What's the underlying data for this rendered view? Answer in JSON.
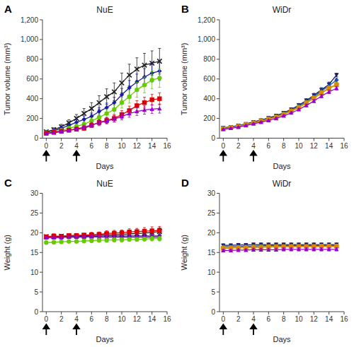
{
  "chart_data": [
    {
      "type": "line",
      "label": "A",
      "title": "NuE",
      "xlabel": "Days",
      "ylabel": "Tumor volume (mm³)",
      "xlim": [
        -0.5,
        16
      ],
      "xticks": [
        0,
        2,
        4,
        6,
        8,
        10,
        12,
        14,
        16
      ],
      "ylim": [
        0,
        1200
      ],
      "yticks": [
        0,
        200,
        400,
        600,
        800,
        {
          "value": 1000,
          "label": "1,000"
        },
        {
          "value": 1200,
          "label": "1,200"
        }
      ],
      "x": [
        0,
        1,
        2,
        3,
        4,
        5,
        6,
        7,
        8,
        9,
        10,
        11,
        12,
        13,
        14,
        15
      ],
      "arrows": [
        0,
        4
      ],
      "series": [
        {
          "color": "#222222",
          "marker": "x",
          "values": [
            65,
            85,
            115,
            155,
            200,
            250,
            300,
            360,
            420,
            470,
            560,
            640,
            700,
            740,
            760,
            780
          ],
          "errors": [
            15,
            20,
            25,
            32,
            40,
            50,
            60,
            70,
            80,
            90,
            100,
            110,
            115,
            120,
            125,
            130
          ]
        },
        {
          "color": "#1a1aaa",
          "marker": "diamond",
          "values": [
            60,
            75,
            100,
            130,
            160,
            190,
            220,
            270,
            310,
            360,
            440,
            510,
            570,
            620,
            660,
            680
          ],
          "errors": [
            15,
            18,
            22,
            25,
            30,
            35,
            35,
            40,
            45,
            55,
            65,
            75,
            80,
            85,
            90,
            95
          ]
        },
        {
          "color": "#66cc00",
          "marker": "circle",
          "values": [
            55,
            65,
            80,
            100,
            120,
            140,
            175,
            210,
            250,
            290,
            360,
            420,
            490,
            540,
            590,
            610
          ],
          "errors": [
            12,
            15,
            18,
            20,
            22,
            25,
            30,
            35,
            40,
            45,
            55,
            65,
            75,
            80,
            90,
            95
          ]
        },
        {
          "color": "#dd0000",
          "marker": "square",
          "values": [
            50,
            60,
            70,
            80,
            90,
            100,
            130,
            160,
            180,
            200,
            240,
            280,
            330,
            360,
            390,
            400
          ],
          "errors": [
            10,
            12,
            12,
            15,
            15,
            18,
            20,
            25,
            30,
            35,
            40,
            45,
            50,
            55,
            55,
            60
          ]
        },
        {
          "color": "#9900cc",
          "marker": "triangle-up",
          "values": [
            45,
            55,
            65,
            80,
            95,
            110,
            135,
            155,
            175,
            195,
            220,
            250,
            270,
            285,
            295,
            300
          ],
          "errors": [
            10,
            12,
            15,
            18,
            20,
            22,
            25,
            28,
            30,
            32,
            35,
            38,
            40,
            42,
            44,
            46
          ]
        }
      ]
    },
    {
      "type": "line",
      "label": "B",
      "title": "WiDr",
      "xlabel": "Days",
      "ylabel": "Tumor volume (mm³)",
      "xlim": [
        -0.5,
        16
      ],
      "xticks": [
        0,
        2,
        4,
        6,
        8,
        10,
        12,
        14,
        16
      ],
      "ylim": [
        0,
        1200
      ],
      "yticks": [
        0,
        200,
        400,
        600,
        800,
        {
          "value": 1000,
          "label": "1,000"
        },
        {
          "value": 1200,
          "label": "1,200"
        }
      ],
      "x": [
        0,
        1,
        2,
        3,
        4,
        5,
        6,
        7,
        8,
        9,
        10,
        11,
        12,
        13,
        14,
        15
      ],
      "arrows": [
        0,
        4
      ],
      "series": [
        {
          "color": "#1a1a55",
          "marker": "triangle-down",
          "values": [
            105,
            115,
            128,
            145,
            165,
            183,
            205,
            228,
            258,
            292,
            335,
            382,
            435,
            490,
            545,
            640
          ],
          "errors": [
            5,
            6,
            7,
            8,
            9,
            10,
            11,
            12,
            13,
            15,
            16,
            18,
            20,
            22,
            24,
            18
          ]
        },
        {
          "color": "#1a4aaa",
          "marker": "diamond",
          "values": [
            100,
            112,
            125,
            142,
            162,
            180,
            200,
            222,
            252,
            285,
            325,
            372,
            420,
            478,
            530,
            590
          ],
          "errors": [
            5,
            6,
            7,
            8,
            9,
            10,
            11,
            12,
            13,
            14,
            16,
            17,
            19,
            21,
            23,
            20
          ]
        },
        {
          "color": "#aaaa00",
          "marker": "circle",
          "values": [
            97,
            108,
            120,
            138,
            157,
            174,
            194,
            216,
            244,
            278,
            315,
            360,
            408,
            462,
            510,
            545
          ],
          "errors": [
            5,
            6,
            7,
            8,
            9,
            9,
            10,
            11,
            12,
            13,
            14,
            16,
            18,
            19,
            21,
            22
          ]
        },
        {
          "color": "#dd8800",
          "marker": "square",
          "values": [
            95,
            106,
            118,
            136,
            154,
            171,
            191,
            213,
            241,
            273,
            310,
            356,
            403,
            456,
            503,
            540
          ],
          "errors": [
            5,
            6,
            7,
            8,
            8,
            9,
            10,
            11,
            12,
            13,
            14,
            15,
            17,
            18,
            20,
            21
          ]
        },
        {
          "color": "#9900cc",
          "marker": "triangle-up",
          "values": [
            90,
            100,
            112,
            128,
            146,
            162,
            180,
            200,
            226,
            256,
            290,
            332,
            376,
            426,
            470,
            505
          ],
          "errors": [
            5,
            6,
            6,
            7,
            8,
            9,
            9,
            10,
            11,
            12,
            13,
            14,
            16,
            17,
            18,
            19
          ]
        }
      ]
    },
    {
      "type": "line",
      "label": "C",
      "title": "NuE",
      "xlabel": "Days",
      "ylabel": "Weight (g)",
      "xlim": [
        -0.5,
        16
      ],
      "xticks": [
        0,
        2,
        4,
        6,
        8,
        10,
        12,
        14,
        16
      ],
      "ylim": [
        0,
        30
      ],
      "yticks": [
        0,
        5,
        10,
        15,
        20,
        25,
        30
      ],
      "x": [
        0,
        1,
        2,
        3,
        4,
        5,
        6,
        7,
        8,
        9,
        10,
        11,
        12,
        13,
        14,
        15
      ],
      "arrows": [
        0,
        4
      ],
      "series": [
        {
          "color": "#222222",
          "marker": "x",
          "values": [
            19.0,
            19.0,
            19.1,
            19.2,
            19.2,
            19.3,
            19.3,
            19.4,
            19.5,
            19.5,
            19.6,
            19.7,
            19.8,
            19.9,
            20.1,
            20.3
          ],
          "errors": [
            0.4,
            0.4,
            0.5,
            0.5,
            0.5,
            0.5,
            0.5,
            0.5,
            0.6,
            0.6,
            0.6,
            0.6,
            0.7,
            0.7,
            0.8,
            0.9
          ]
        },
        {
          "color": "#1a1aaa",
          "marker": "diamond",
          "values": [
            18.8,
            18.9,
            18.9,
            19.0,
            19.0,
            19.1,
            19.1,
            19.1,
            19.2,
            19.2,
            19.2,
            19.2,
            19.2,
            19.2,
            19.2,
            19.2
          ],
          "errors": [
            0.4,
            0.4,
            0.4,
            0.4,
            0.5,
            0.5,
            0.5,
            0.5,
            0.5,
            0.5,
            0.5,
            0.5,
            0.5,
            0.5,
            0.5,
            0.5
          ]
        },
        {
          "color": "#dd0000",
          "marker": "square",
          "values": [
            19.0,
            19.2,
            19.1,
            19.3,
            19.3,
            19.4,
            19.5,
            19.6,
            19.8,
            19.9,
            20.0,
            20.2,
            20.3,
            20.4,
            20.5,
            20.6
          ],
          "errors": [
            0.4,
            0.5,
            0.4,
            0.5,
            0.5,
            0.5,
            0.6,
            0.6,
            0.7,
            0.7,
            0.7,
            0.8,
            0.8,
            0.9,
            1.0,
            1.0
          ]
        },
        {
          "color": "#9900cc",
          "marker": "triangle-up",
          "values": [
            18.8,
            18.8,
            18.8,
            18.9,
            18.9,
            18.9,
            19.0,
            18.9,
            18.9,
            18.9,
            18.9,
            18.9,
            18.9,
            18.9,
            18.9,
            18.9
          ],
          "errors": [
            0.4,
            0.4,
            0.4,
            0.4,
            0.4,
            0.5,
            0.5,
            0.5,
            0.5,
            0.5,
            0.5,
            0.5,
            0.5,
            0.5,
            0.5,
            0.5
          ]
        },
        {
          "color": "#66cc00",
          "marker": "circle",
          "values": [
            17.5,
            17.6,
            17.7,
            17.8,
            17.8,
            17.9,
            18.0,
            18.1,
            18.1,
            18.2,
            18.2,
            18.3,
            18.3,
            18.4,
            18.5,
            18.5
          ],
          "errors": [
            0.4,
            0.4,
            0.4,
            0.4,
            0.4,
            0.5,
            0.5,
            0.5,
            0.5,
            0.5,
            0.5,
            0.5,
            0.5,
            0.5,
            0.6,
            0.6
          ]
        }
      ]
    },
    {
      "type": "line",
      "label": "D",
      "title": "WiDr",
      "xlabel": "Days",
      "ylabel": "Weight (g)",
      "xlim": [
        -0.5,
        16
      ],
      "xticks": [
        0,
        2,
        4,
        6,
        8,
        10,
        12,
        14,
        16
      ],
      "ylim": [
        0,
        30
      ],
      "yticks": [
        0,
        5,
        10,
        15,
        20,
        25,
        30
      ],
      "x": [
        0,
        1,
        2,
        3,
        4,
        5,
        6,
        7,
        8,
        9,
        10,
        11,
        12,
        13,
        14,
        15
      ],
      "arrows": [
        0,
        4
      ],
      "series": [
        {
          "color": "#1a1a55",
          "marker": "triangle-down",
          "values": [
            16.8,
            16.8,
            16.9,
            16.9,
            17.0,
            17.0,
            17.0,
            17.0,
            17.0,
            17.0,
            17.0,
            17.0,
            17.0,
            17.0,
            17.0,
            17.0
          ],
          "errors": [
            0.4,
            0.4,
            0.4,
            0.4,
            0.4,
            0.4,
            0.4,
            0.4,
            0.4,
            0.4,
            0.4,
            0.4,
            0.4,
            0.4,
            0.4,
            0.4
          ]
        },
        {
          "color": "#1a4aaa",
          "marker": "diamond",
          "values": [
            16.5,
            16.5,
            16.5,
            16.6,
            16.6,
            16.7,
            16.7,
            16.7,
            16.7,
            16.7,
            16.7,
            16.7,
            16.7,
            16.7,
            16.7,
            16.7
          ],
          "errors": [
            0.4,
            0.4,
            0.4,
            0.4,
            0.4,
            0.4,
            0.4,
            0.4,
            0.4,
            0.4,
            0.4,
            0.4,
            0.4,
            0.4,
            0.4,
            0.4
          ]
        },
        {
          "color": "#aaaa00",
          "marker": "circle",
          "values": [
            16.2,
            16.2,
            16.3,
            16.3,
            16.4,
            16.4,
            16.5,
            16.5,
            16.5,
            16.5,
            16.5,
            16.5,
            16.5,
            16.5,
            16.5,
            16.5
          ],
          "errors": [
            0.3,
            0.3,
            0.4,
            0.4,
            0.4,
            0.4,
            0.4,
            0.4,
            0.4,
            0.4,
            0.4,
            0.4,
            0.4,
            0.4,
            0.4,
            0.4
          ]
        },
        {
          "color": "#dd8800",
          "marker": "square",
          "values": [
            16.0,
            16.1,
            16.2,
            16.2,
            16.3,
            16.3,
            16.4,
            16.4,
            16.4,
            16.5,
            16.5,
            16.5,
            16.5,
            16.6,
            16.6,
            16.6
          ],
          "errors": [
            0.3,
            0.3,
            0.4,
            0.4,
            0.4,
            0.4,
            0.4,
            0.4,
            0.4,
            0.4,
            0.4,
            0.4,
            0.4,
            0.4,
            0.4,
            0.5
          ]
        },
        {
          "color": "#9900cc",
          "marker": "triangle-up",
          "values": [
            15.5,
            15.5,
            15.6,
            15.6,
            15.7,
            15.7,
            15.7,
            15.7,
            15.8,
            15.8,
            15.8,
            15.8,
            15.8,
            15.8,
            15.8,
            15.8
          ],
          "errors": [
            0.3,
            0.3,
            0.3,
            0.3,
            0.4,
            0.4,
            0.4,
            0.4,
            0.4,
            0.4,
            0.4,
            0.4,
            0.4,
            0.4,
            0.4,
            0.4
          ]
        }
      ]
    }
  ]
}
